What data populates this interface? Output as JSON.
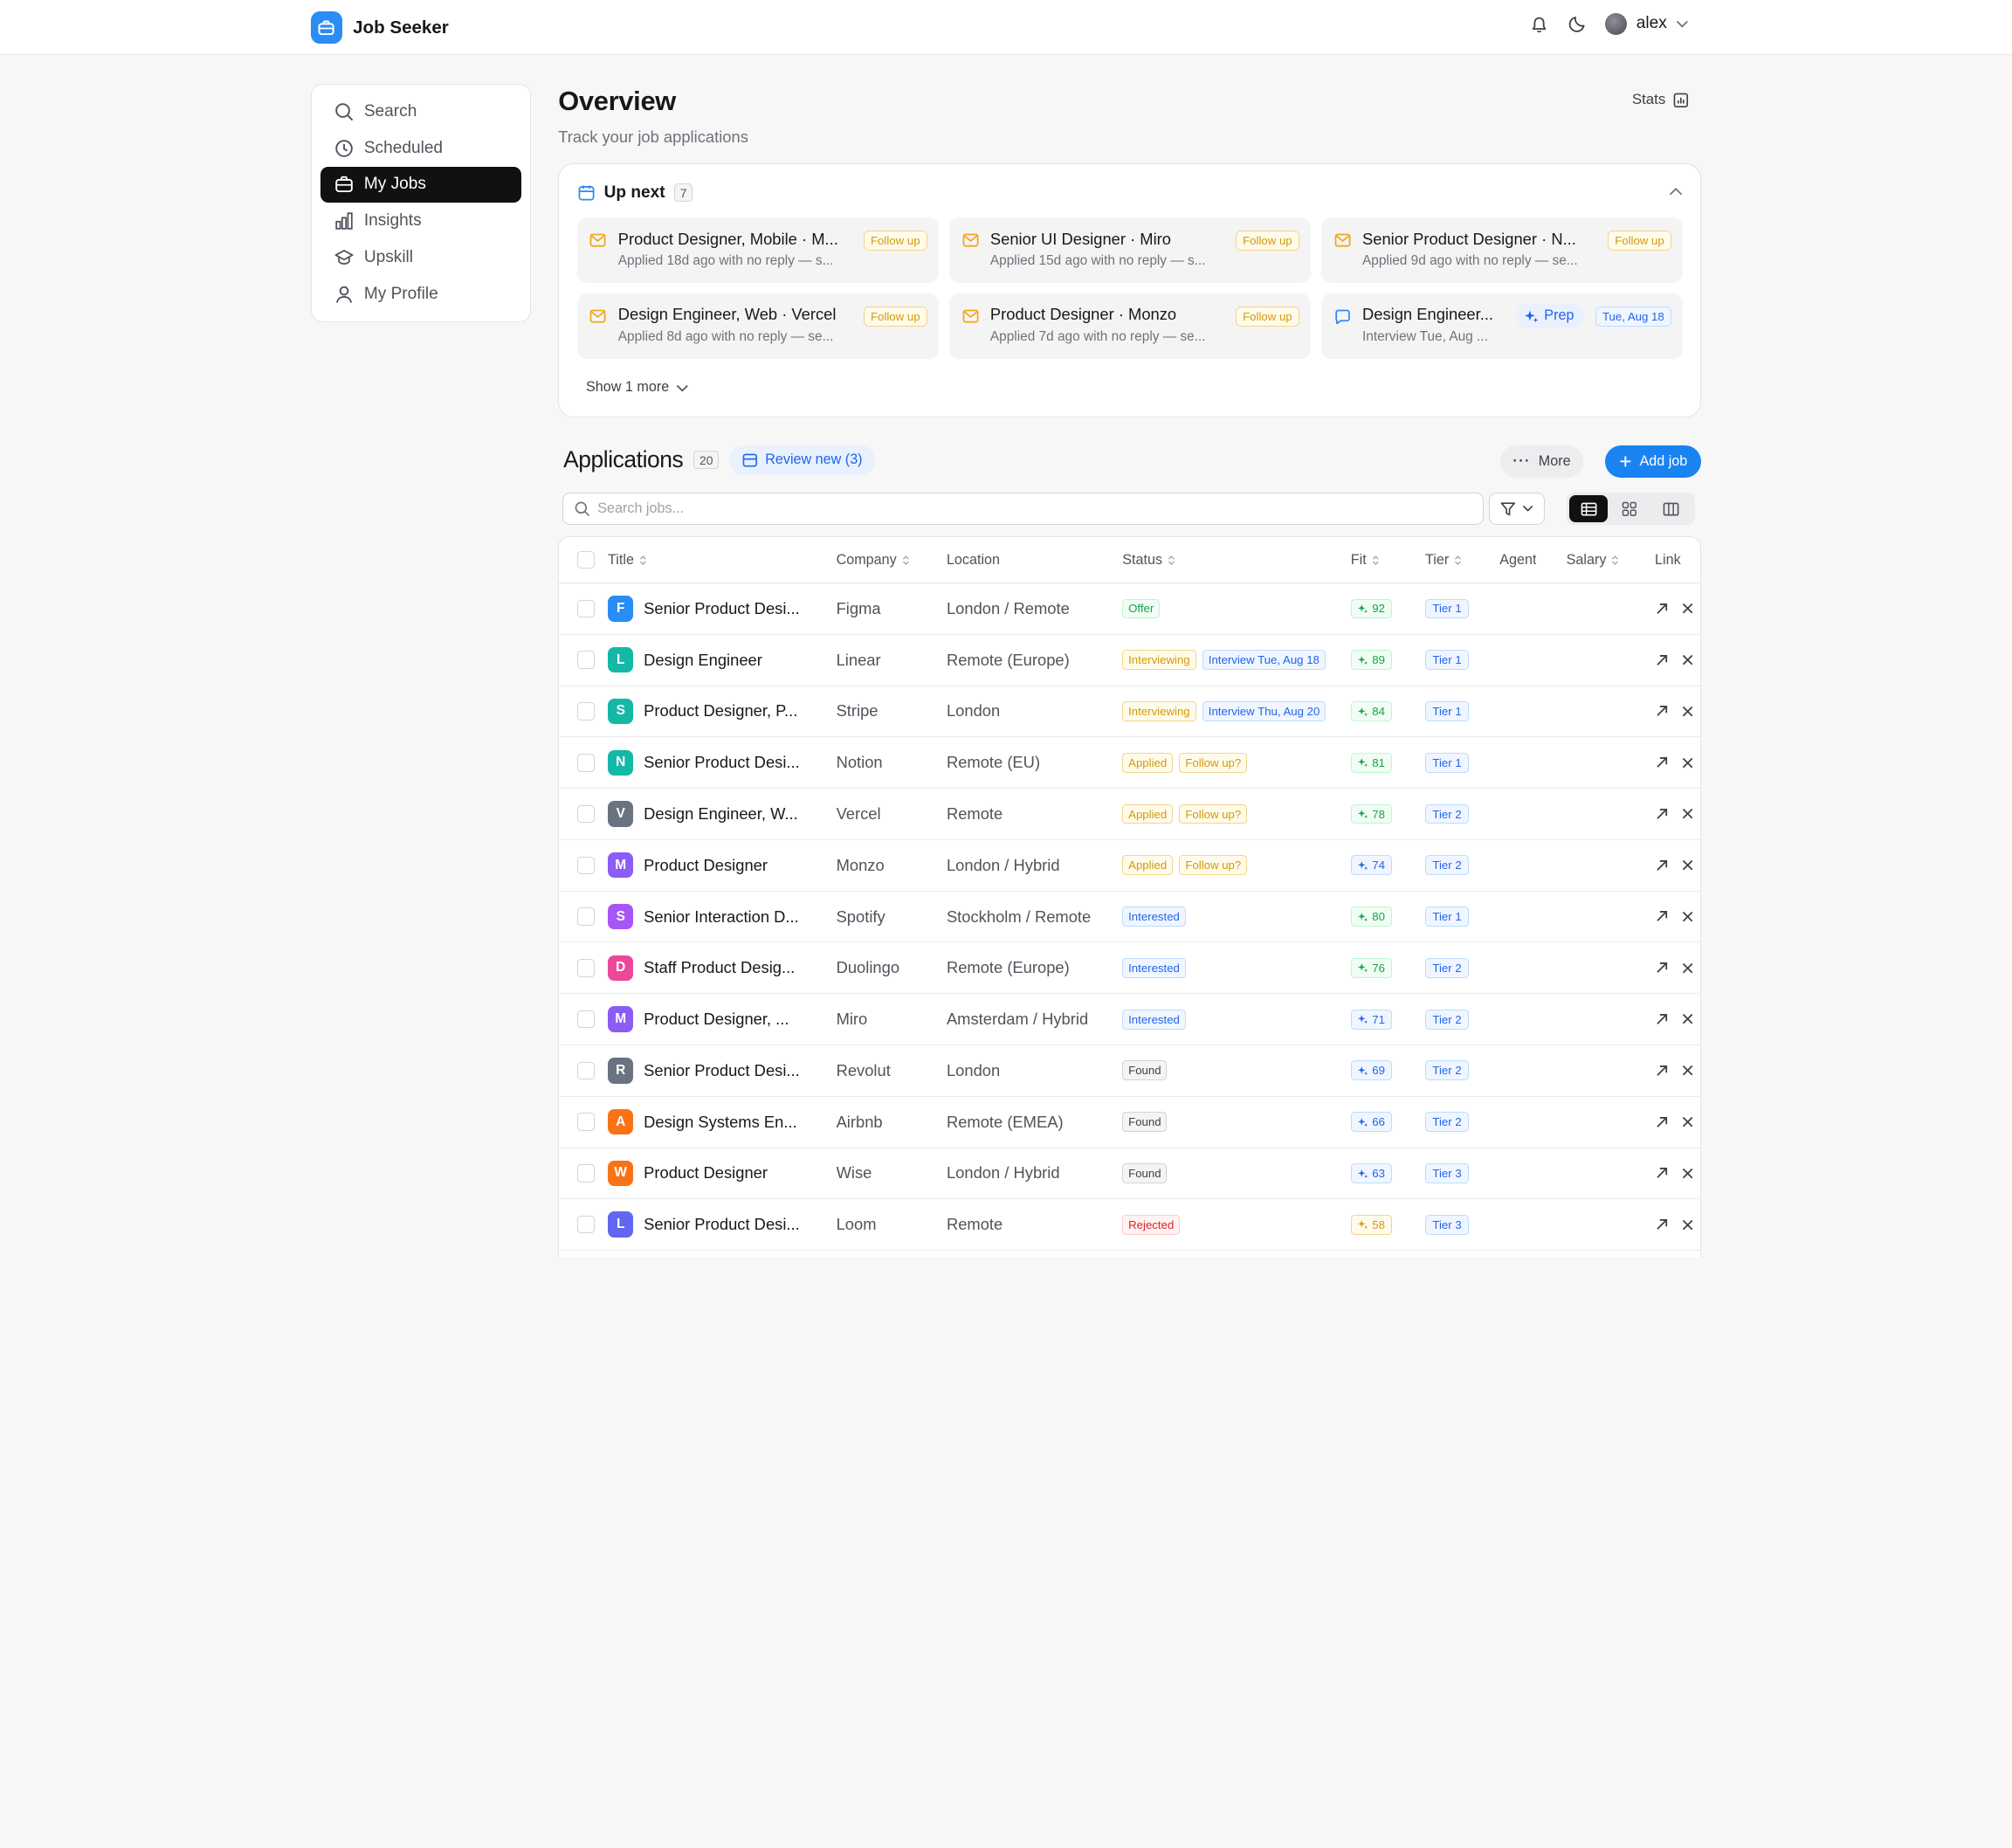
{
  "app": {
    "name": "Job Seeker"
  },
  "header": {
    "user_name": "alex"
  },
  "sidebar": {
    "items": [
      {
        "label": "Search",
        "icon": "search-icon"
      },
      {
        "label": "Scheduled",
        "icon": "clock-icon"
      },
      {
        "label": "My Jobs",
        "icon": "briefcase-icon",
        "active": true
      },
      {
        "label": "Insights",
        "icon": "bar-chart-icon"
      },
      {
        "label": "Upskill",
        "icon": "graduation-cap-icon"
      },
      {
        "label": "My Profile",
        "icon": "user-icon"
      }
    ]
  },
  "overview": {
    "title": "Overview",
    "subtitle": "Track your job applications",
    "stats_label": "Stats"
  },
  "up_next": {
    "title": "Up next",
    "count": "7",
    "show_more": "Show 1 more",
    "cards": [
      {
        "title": "Product Designer, Mobile · M...",
        "sub": "Applied 18d ago with no reply — s...",
        "pill": "Follow up",
        "icon": "mail-icon"
      },
      {
        "title": "Senior UI Designer · Miro",
        "sub": "Applied 15d ago with no reply — s...",
        "pill": "Follow up",
        "icon": "mail-icon"
      },
      {
        "title": "Senior Product Designer · N...",
        "sub": "Applied 9d ago with no reply — se...",
        "pill": "Follow up",
        "icon": "mail-icon"
      },
      {
        "title": "Design Engineer, Web · Vercel",
        "sub": "Applied 8d ago with no reply — se...",
        "pill": "Follow up",
        "icon": "mail-icon"
      },
      {
        "title": "Product Designer · Monzo",
        "sub": "Applied 7d ago with no reply — se...",
        "pill": "Follow up",
        "icon": "mail-icon"
      },
      {
        "title": "Design Engineer...",
        "sub": "Interview Tue, Aug ...",
        "pill": "Tue, Aug 18",
        "prep": "Prep",
        "icon": "chat-icon"
      }
    ]
  },
  "applications": {
    "title": "Applications",
    "count": "20",
    "review_label": "Review new (3)",
    "more_label": "More",
    "add_label": "Add job",
    "search_placeholder": "Search jobs...",
    "columns": [
      "Title",
      "Company",
      "Location",
      "Status",
      "Fit",
      "Tier",
      "Agent",
      "Salary",
      "Link"
    ],
    "rows": [
      {
        "initial": "F",
        "color": "#2a8cf5",
        "title": "Senior Product Desi...",
        "company": "Figma",
        "location": "London / Remote",
        "status": [
          "Offer"
        ],
        "status_kinds": [
          "offer"
        ],
        "fit": "92",
        "fit_kind": "green",
        "tier": "Tier 1"
      },
      {
        "initial": "L",
        "color": "#14b8a6",
        "title": "Design Engineer",
        "company": "Linear",
        "location": "Remote (Europe)",
        "status": [
          "Interviewing",
          "Interview Tue, Aug 18"
        ],
        "status_kinds": [
          "interviewing",
          "interview-date"
        ],
        "fit": "89",
        "fit_kind": "green",
        "tier": "Tier 1"
      },
      {
        "initial": "S",
        "color": "#14b8a6",
        "title": "Product Designer, P...",
        "company": "Stripe",
        "location": "London",
        "status": [
          "Interviewing",
          "Interview Thu, Aug 20"
        ],
        "status_kinds": [
          "interviewing",
          "interview-date"
        ],
        "fit": "84",
        "fit_kind": "green",
        "tier": "Tier 1"
      },
      {
        "initial": "N",
        "color": "#14b8a6",
        "title": "Senior Product Desi...",
        "company": "Notion",
        "location": "Remote (EU)",
        "status": [
          "Applied",
          "Follow up?"
        ],
        "status_kinds": [
          "applied",
          "followup"
        ],
        "fit": "81",
        "fit_kind": "green",
        "tier": "Tier 1"
      },
      {
        "initial": "V",
        "color": "#6b7280",
        "title": "Design Engineer, W...",
        "company": "Vercel",
        "location": "Remote",
        "status": [
          "Applied",
          "Follow up?"
        ],
        "status_kinds": [
          "applied",
          "followup"
        ],
        "fit": "78",
        "fit_kind": "green",
        "tier": "Tier 2"
      },
      {
        "initial": "M",
        "color": "#8b5cf6",
        "title": "Product Designer",
        "company": "Monzo",
        "location": "London / Hybrid",
        "status": [
          "Applied",
          "Follow up?"
        ],
        "status_kinds": [
          "applied",
          "followup"
        ],
        "fit": "74",
        "fit_kind": "blue",
        "tier": "Tier 2"
      },
      {
        "initial": "S",
        "color": "#a855f7",
        "title": "Senior Interaction D...",
        "company": "Spotify",
        "location": "Stockholm / Remote",
        "status": [
          "Interested"
        ],
        "status_kinds": [
          "interested"
        ],
        "fit": "80",
        "fit_kind": "green",
        "tier": "Tier 1"
      },
      {
        "initial": "D",
        "color": "#ec4899",
        "title": "Staff Product Desig...",
        "company": "Duolingo",
        "location": "Remote (Europe)",
        "status": [
          "Interested"
        ],
        "status_kinds": [
          "interested"
        ],
        "fit": "76",
        "fit_kind": "green",
        "tier": "Tier 2"
      },
      {
        "initial": "M",
        "color": "#8b5cf6",
        "title": "Product Designer, ...",
        "company": "Miro",
        "location": "Amsterdam / Hybrid",
        "status": [
          "Interested"
        ],
        "status_kinds": [
          "interested"
        ],
        "fit": "71",
        "fit_kind": "blue",
        "tier": "Tier 2"
      },
      {
        "initial": "R",
        "color": "#6b7280",
        "title": "Senior Product Desi...",
        "company": "Revolut",
        "location": "London",
        "status": [
          "Found"
        ],
        "status_kinds": [
          "found"
        ],
        "fit": "69",
        "fit_kind": "blue",
        "tier": "Tier 2"
      },
      {
        "initial": "A",
        "color": "#f97316",
        "title": "Design Systems En...",
        "company": "Airbnb",
        "location": "Remote (EMEA)",
        "status": [
          "Found"
        ],
        "status_kinds": [
          "found"
        ],
        "fit": "66",
        "fit_kind": "blue",
        "tier": "Tier 2"
      },
      {
        "initial": "W",
        "color": "#f97316",
        "title": "Product Designer",
        "company": "Wise",
        "location": "London / Hybrid",
        "status": [
          "Found"
        ],
        "status_kinds": [
          "found"
        ],
        "fit": "63",
        "fit_kind": "blue",
        "tier": "Tier 3"
      },
      {
        "initial": "L",
        "color": "#6366f1",
        "title": "Senior Product Desi...",
        "company": "Loom",
        "location": "Remote",
        "status": [
          "Rejected"
        ],
        "status_kinds": [
          "rejected"
        ],
        "fit": "58",
        "fit_kind": "amber",
        "tier": "Tier 3"
      }
    ]
  }
}
